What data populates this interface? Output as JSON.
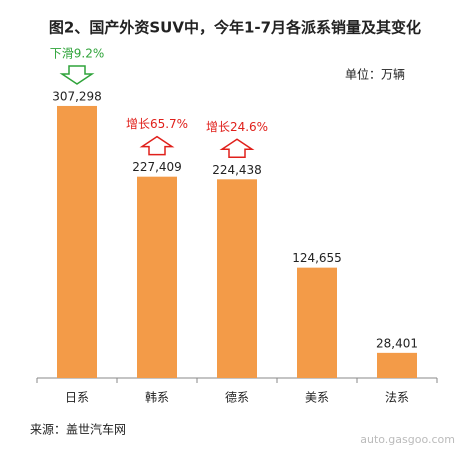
{
  "chart_data": {
    "type": "bar",
    "title": "图2、国产外资SUV中，今年1-7月各派系销量及其变化",
    "unit": "单位：万辆",
    "source": "来源：盖世汽车网",
    "watermark": "auto.gasgoo.com",
    "categories": [
      "日系",
      "韩系",
      "德系",
      "美系",
      "法系"
    ],
    "values": [
      307298,
      227409,
      224438,
      124655,
      28401
    ],
    "value_labels": [
      "307,298",
      "227,409",
      "224,438",
      "124,655",
      "28,401"
    ],
    "color": "#f39b48",
    "ylim": [
      0,
      340000
    ],
    "annotations": [
      {
        "text": "下滑9.2%",
        "category": "日系",
        "direction": "down",
        "color": "#2fa33a"
      },
      {
        "text": "增长65.7%",
        "category": "韩系",
        "direction": "up",
        "color": "#e0201b"
      },
      {
        "text": "增长24.6%",
        "category": "德系",
        "direction": "up",
        "color": "#e0201b"
      }
    ]
  }
}
